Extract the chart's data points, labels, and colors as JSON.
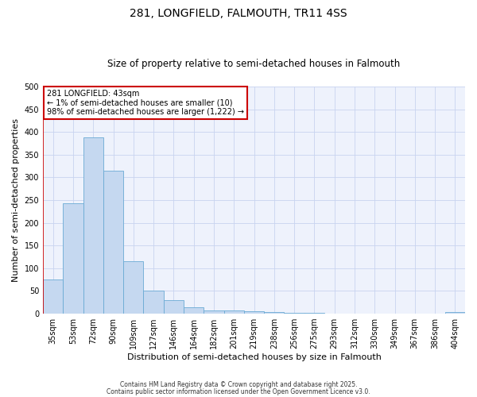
{
  "title1": "281, LONGFIELD, FALMOUTH, TR11 4SS",
  "title2": "Size of property relative to semi-detached houses in Falmouth",
  "xlabel": "Distribution of semi-detached houses by size in Falmouth",
  "ylabel": "Number of semi-detached properties",
  "categories": [
    "35sqm",
    "53sqm",
    "72sqm",
    "90sqm",
    "109sqm",
    "127sqm",
    "146sqm",
    "164sqm",
    "182sqm",
    "201sqm",
    "219sqm",
    "238sqm",
    "256sqm",
    "275sqm",
    "293sqm",
    "312sqm",
    "330sqm",
    "349sqm",
    "367sqm",
    "386sqm",
    "404sqm"
  ],
  "values": [
    75,
    243,
    388,
    315,
    115,
    50,
    30,
    15,
    7,
    7,
    5,
    3,
    2,
    2,
    1,
    1,
    1,
    0,
    0,
    1,
    4
  ],
  "bar_color": "#c5d8f0",
  "bar_edge_color": "#6aaad4",
  "highlight_color": "#cc0000",
  "annotation_title": "281 LONGFIELD: 43sqm",
  "annotation_line1": "← 1% of semi-detached houses are smaller (10)",
  "annotation_line2": "98% of semi-detached houses are larger (1,222) →",
  "annotation_box_color": "#ffffff",
  "annotation_box_edge": "#cc0000",
  "ylim": [
    0,
    500
  ],
  "yticks": [
    0,
    50,
    100,
    150,
    200,
    250,
    300,
    350,
    400,
    450,
    500
  ],
  "footer1": "Contains HM Land Registry data © Crown copyright and database right 2025.",
  "footer2": "Contains public sector information licensed under the Open Government Licence v3.0.",
  "bg_color": "#eef2fc",
  "title1_fontsize": 10,
  "title2_fontsize": 8.5,
  "tick_fontsize": 7,
  "label_fontsize": 8,
  "annotation_fontsize": 7,
  "footer_fontsize": 5.5
}
